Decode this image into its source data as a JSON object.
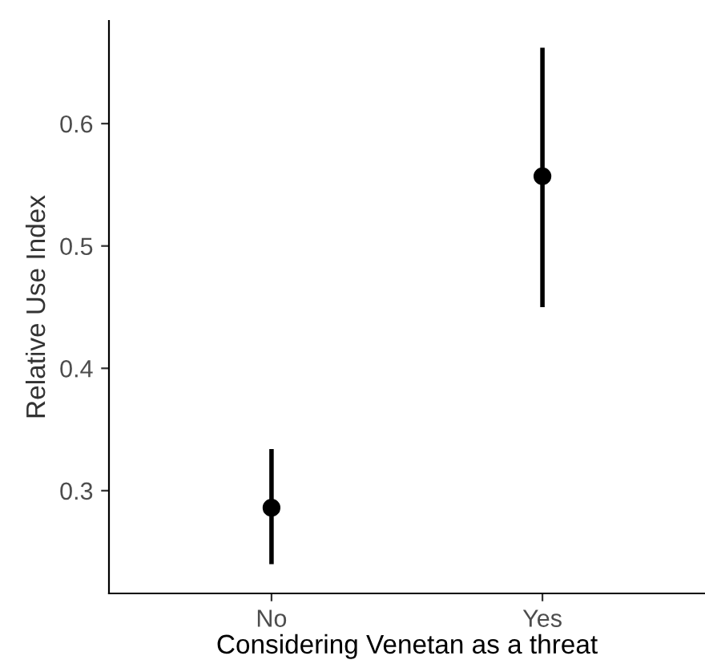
{
  "chart_data": {
    "type": "scatter",
    "xlabel": "Considering Venetan as a threat",
    "ylabel": "Relative Use Index",
    "categories": [
      "No",
      "Yes"
    ],
    "values": [
      0.286,
      0.557
    ],
    "errors": [
      [
        0.24,
        0.334
      ],
      [
        0.45,
        0.662
      ]
    ],
    "color": "#000000",
    "marker": "circle",
    "ylim": [
      0.216,
      0.684
    ],
    "yticks": [
      0.3,
      0.4,
      0.5,
      0.6
    ],
    "grid": false,
    "legend": false
  }
}
